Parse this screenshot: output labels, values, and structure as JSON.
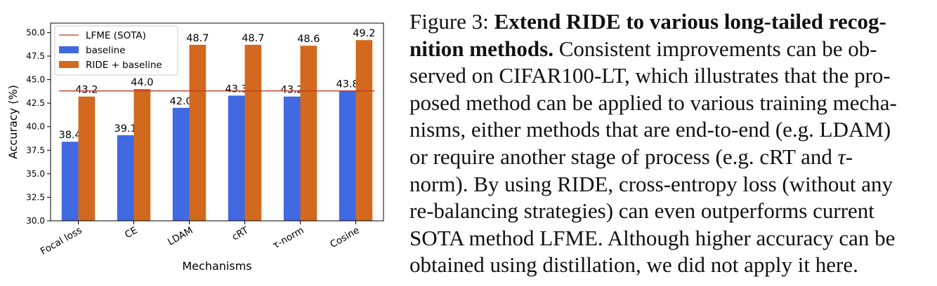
{
  "chart_data": {
    "type": "bar",
    "xlabel": "Mechanisms",
    "ylabel": "Accuracy (%)",
    "ylim": [
      30.0,
      51.0
    ],
    "yticks": [
      "30.0",
      "32.5",
      "35.0",
      "37.5",
      "40.0",
      "42.5",
      "45.0",
      "47.5",
      "50.0"
    ],
    "categories": [
      "Focal loss",
      "CE",
      "LDAM",
      "cRT",
      "τ-norm",
      "Cosine"
    ],
    "series": [
      {
        "name": "baseline",
        "color": "#4169e1",
        "values": [
          38.4,
          39.1,
          42.0,
          43.3,
          43.2,
          43.8
        ],
        "labels": [
          "38.4",
          "39.1",
          "42.0",
          "43.3",
          "43.2",
          "43.8"
        ]
      },
      {
        "name": "RIDE + baseline",
        "color": "#d2691e",
        "values": [
          43.2,
          44.0,
          48.7,
          48.7,
          48.6,
          49.2
        ],
        "labels": [
          "43.2",
          "44.0",
          "48.7",
          "48.7",
          "48.6",
          "49.2"
        ]
      }
    ],
    "reference_line": {
      "name": "LFME (SOTA)",
      "value": 43.8,
      "color": "#c0392b"
    },
    "legend_position": "upper-left",
    "grid": false
  },
  "caption": {
    "figure_label": "Figure 3:",
    "bold_title": "Extend RIDE to various long-tailed recog-nition methods.",
    "bold_line1": "Extend RIDE to various long-tailed recog-",
    "bold_line2": "nition methods.",
    "body_line2_rest": "Consistent improvements can be ob-",
    "line3": "served on CIFAR100-LT, which illustrates that the pro-",
    "line4": "posed method can be applied to various training mecha-",
    "line5": "nisms, either methods that are end-to-end (e.g. LDAM)",
    "line6_a": "or require another stage of process (e.g.  cRT and ",
    "line6_tau": "τ",
    "line6_b": "-",
    "line7": "norm). By using RIDE, cross-entropy loss (without any",
    "line8": "re-balancing strategies) can even outperforms current",
    "line9": "SOTA method LFME. Although higher accuracy can be",
    "line10": "obtained using distillation, we did not apply it here."
  }
}
